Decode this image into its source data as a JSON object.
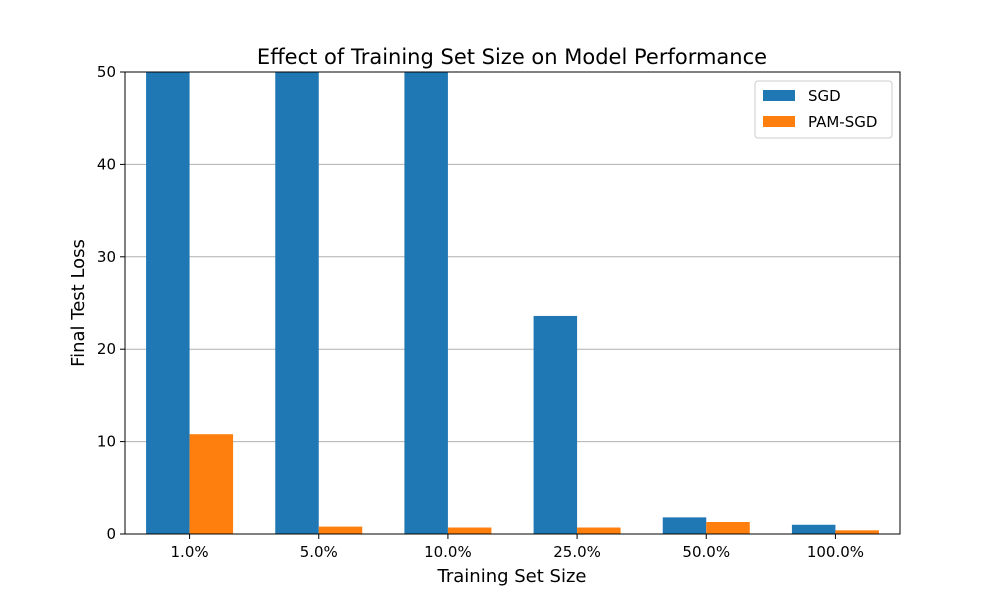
{
  "chart_data": {
    "type": "bar",
    "title": "Effect of Training Set Size on Model Performance",
    "xlabel": "Training Set Size",
    "ylabel": "Final Test Loss",
    "categories": [
      "1.0%",
      "5.0%",
      "10.0%",
      "25.0%",
      "50.0%",
      "100.0%"
    ],
    "series": [
      {
        "name": "SGD",
        "color": "#1f77b4",
        "values": [
          50,
          50,
          50,
          23.6,
          1.8,
          1.0
        ]
      },
      {
        "name": "PAM-SGD",
        "color": "#ff7f0e",
        "values": [
          10.8,
          0.8,
          0.7,
          0.7,
          1.3,
          0.4
        ]
      }
    ],
    "ylim": [
      0,
      50
    ],
    "yticks": [
      0,
      10,
      20,
      30,
      40,
      50
    ],
    "grid": "y",
    "legend": "top-right"
  }
}
